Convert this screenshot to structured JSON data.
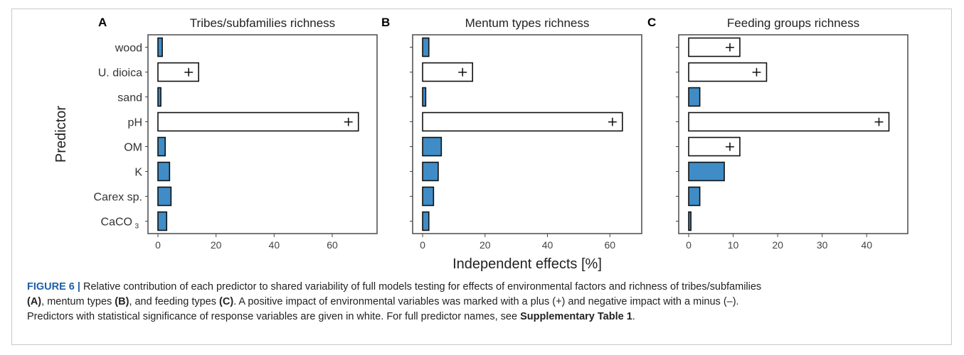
{
  "chart_data": [
    {
      "type": "bar",
      "orientation": "horizontal",
      "panel_letter": "A",
      "title": "Tribes/subfamilies richness",
      "ylabel": "Predictor",
      "xlabel": "",
      "xlim": [
        0,
        72
      ],
      "xticks": [
        0,
        20,
        40,
        60
      ],
      "categories": [
        "wood",
        "U. dioica",
        "sand",
        "pH",
        "OM",
        "K",
        "Carex sp.",
        "CaCO3"
      ],
      "category_labels": [
        "wood",
        "U. dioica",
        "sand",
        "pH",
        "OM",
        "K",
        "Carex sp.",
        "CaCO"
      ],
      "values": [
        1.5,
        14,
        1,
        69,
        2.5,
        4,
        4.5,
        3
      ],
      "significant": [
        false,
        true,
        false,
        true,
        false,
        false,
        false,
        false
      ],
      "marks": [
        "",
        "+",
        "",
        "+",
        "",
        "",
        "",
        ""
      ]
    },
    {
      "type": "bar",
      "orientation": "horizontal",
      "panel_letter": "B",
      "title": "Mentum types richness",
      "xlabel": "Independent effects [%]",
      "xlim": [
        0,
        67
      ],
      "xticks": [
        0,
        20,
        40,
        60
      ],
      "categories": [
        "wood",
        "U. dioica",
        "sand",
        "pH",
        "OM",
        "K",
        "Carex sp.",
        "CaCO3"
      ],
      "values": [
        2,
        16,
        1,
        64,
        6,
        5,
        3.5,
        2
      ],
      "significant": [
        false,
        true,
        false,
        true,
        false,
        false,
        false,
        false
      ],
      "marks": [
        "",
        "+",
        "",
        "+",
        "",
        "",
        "",
        ""
      ]
    },
    {
      "type": "bar",
      "orientation": "horizontal",
      "panel_letter": "C",
      "title": "Feeding groups richness",
      "xlabel": "",
      "xlim": [
        0,
        47
      ],
      "xticks": [
        0,
        10,
        20,
        30,
        40
      ],
      "categories": [
        "wood",
        "U. dioica",
        "sand",
        "pH",
        "OM",
        "K",
        "Carex sp.",
        "CaCO3"
      ],
      "values": [
        11.5,
        17.5,
        2.5,
        45,
        11.5,
        8,
        2.5,
        0.5
      ],
      "significant": [
        true,
        true,
        false,
        true,
        true,
        false,
        false,
        false
      ],
      "marks": [
        "+",
        "+",
        "",
        "+",
        "+",
        "",
        "",
        ""
      ]
    }
  ],
  "shared": {
    "ylabel": "Predictor",
    "xlabel": "Independent effects [%]",
    "subscript": "3"
  },
  "colors": {
    "bar_fill": "#3f8cc6",
    "significant_fill": "#ffffff",
    "outline": "#111111",
    "panel_border": "#555555"
  },
  "caption": {
    "figure_label": "FIGURE 6 |",
    "line1": " Relative contribution of each predictor to shared variability of full models testing for effects of environmental factors and richness of tribes/subfamilies",
    "ref_a": "(A)",
    "mid_a": ", mentum types ",
    "ref_b": "(B)",
    "mid_b": ", and feeding types ",
    "ref_c": "(C)",
    "line2": ". A positive impact of environmental variables was marked with a plus (+) and negative impact with a minus (–).",
    "line3": "Predictors with statistical significance of response variables are given in white. For full predictor names, see ",
    "supp": "Supplementary Table 1",
    "end": "."
  }
}
